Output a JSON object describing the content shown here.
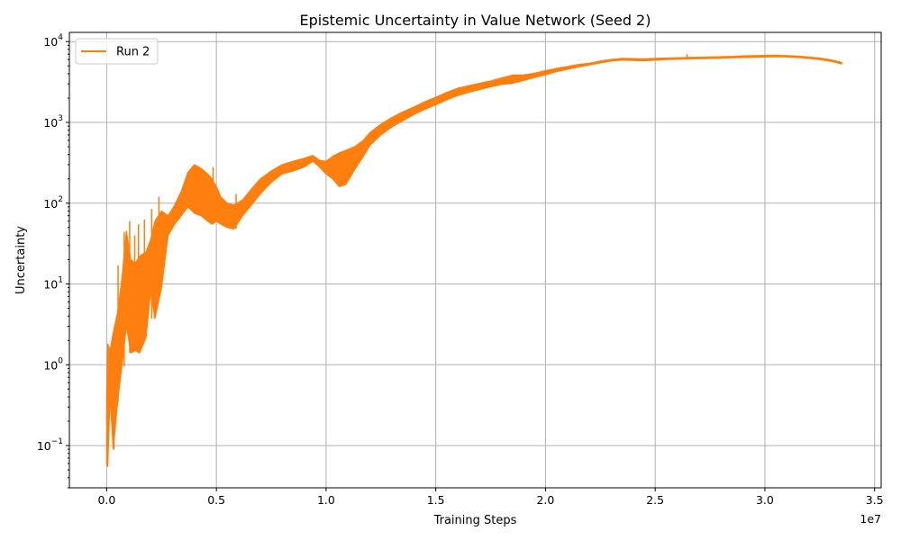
{
  "chart_data": {
    "type": "line",
    "title": "Epistemic Uncertainty in Value Network (Seed 2)",
    "xlabel": "Training Steps",
    "ylabel": "Uncertainty",
    "x_offset_label": "1e7",
    "xlim": [
      -1700000,
      35300000
    ],
    "ylim": [
      0.03,
      13000
    ],
    "yscale": "log",
    "grid": true,
    "legend_position": "upper left",
    "x_ticks": [
      {
        "value": 0,
        "label": "0.0"
      },
      {
        "value": 5000000,
        "label": "0.5"
      },
      {
        "value": 10000000,
        "label": "1.0"
      },
      {
        "value": 15000000,
        "label": "1.5"
      },
      {
        "value": 20000000,
        "label": "2.0"
      },
      {
        "value": 25000000,
        "label": "2.5"
      },
      {
        "value": 30000000,
        "label": "3.0"
      },
      {
        "value": 35000000,
        "label": "3.5"
      }
    ],
    "y_ticks": [
      {
        "value": 0.1,
        "base": "10",
        "exp": "−1"
      },
      {
        "value": 1,
        "base": "10",
        "exp": "0"
      },
      {
        "value": 10,
        "base": "10",
        "exp": "1"
      },
      {
        "value": 100,
        "base": "10",
        "exp": "2"
      },
      {
        "value": 1000,
        "base": "10",
        "exp": "3"
      },
      {
        "value": 10000,
        "base": "10",
        "exp": "4"
      }
    ],
    "series": [
      {
        "name": "Run 2",
        "color": "#ff7f0e",
        "upper": [
          [
            0,
            0.4
          ],
          [
            50000,
            1.8
          ],
          [
            150000,
            1.5
          ],
          [
            300000,
            2.5
          ],
          [
            500000,
            4.5
          ],
          [
            700000,
            12
          ],
          [
            900000,
            45
          ],
          [
            1100000,
            20
          ],
          [
            1300000,
            18
          ],
          [
            1500000,
            22
          ],
          [
            1800000,
            25
          ],
          [
            2000000,
            35
          ],
          [
            2200000,
            60
          ],
          [
            2500000,
            80
          ],
          [
            2800000,
            70
          ],
          [
            3100000,
            95
          ],
          [
            3400000,
            140
          ],
          [
            3700000,
            240
          ],
          [
            4000000,
            300
          ],
          [
            4300000,
            270
          ],
          [
            4600000,
            230
          ],
          [
            4800000,
            200
          ],
          [
            5000000,
            160
          ],
          [
            5200000,
            120
          ],
          [
            5500000,
            100
          ],
          [
            5800000,
            95
          ],
          [
            6200000,
            110
          ],
          [
            6600000,
            150
          ],
          [
            7000000,
            200
          ],
          [
            7500000,
            250
          ],
          [
            8000000,
            300
          ],
          [
            8500000,
            330
          ],
          [
            9000000,
            360
          ],
          [
            9400000,
            390
          ],
          [
            9700000,
            340
          ],
          [
            10000000,
            330
          ],
          [
            10300000,
            380
          ],
          [
            10600000,
            420
          ],
          [
            10900000,
            450
          ],
          [
            11300000,
            500
          ],
          [
            11700000,
            600
          ],
          [
            12000000,
            750
          ],
          [
            12500000,
            950
          ],
          [
            13000000,
            1150
          ],
          [
            13500000,
            1350
          ],
          [
            14000000,
            1550
          ],
          [
            14500000,
            1800
          ],
          [
            15000000,
            2050
          ],
          [
            15500000,
            2350
          ],
          [
            16000000,
            2650
          ],
          [
            16500000,
            2850
          ],
          [
            17000000,
            3050
          ],
          [
            17500000,
            3250
          ],
          [
            18000000,
            3550
          ],
          [
            18500000,
            3850
          ],
          [
            19000000,
            3850
          ],
          [
            19500000,
            4050
          ],
          [
            20000000,
            4350
          ],
          [
            20500000,
            4650
          ],
          [
            21000000,
            4900
          ],
          [
            21500000,
            5200
          ],
          [
            22000000,
            5400
          ],
          [
            22500000,
            5750
          ],
          [
            23000000,
            6000
          ],
          [
            23500000,
            6200
          ],
          [
            24000000,
            6150
          ],
          [
            24500000,
            6100
          ],
          [
            25000000,
            6200
          ],
          [
            25500000,
            6250
          ],
          [
            26000000,
            6300
          ],
          [
            26500000,
            6350
          ],
          [
            27000000,
            6400
          ],
          [
            27500000,
            6450
          ],
          [
            28000000,
            6500
          ],
          [
            28500000,
            6550
          ],
          [
            29000000,
            6650
          ],
          [
            29500000,
            6700
          ],
          [
            30000000,
            6750
          ],
          [
            30500000,
            6800
          ],
          [
            31000000,
            6700
          ],
          [
            31500000,
            6600
          ],
          [
            32000000,
            6450
          ],
          [
            32500000,
            6250
          ],
          [
            33000000,
            5950
          ],
          [
            33500000,
            5500
          ]
        ],
        "lower": [
          [
            0,
            0.06
          ],
          [
            50000,
            0.055
          ],
          [
            150000,
            0.4
          ],
          [
            300000,
            0.09
          ],
          [
            500000,
            0.35
          ],
          [
            700000,
            1.0
          ],
          [
            900000,
            3.0
          ],
          [
            1100000,
            1.4
          ],
          [
            1300000,
            1.5
          ],
          [
            1500000,
            1.4
          ],
          [
            1800000,
            2.2
          ],
          [
            2000000,
            8
          ],
          [
            2200000,
            3.7
          ],
          [
            2500000,
            9
          ],
          [
            2800000,
            40
          ],
          [
            3100000,
            55
          ],
          [
            3400000,
            70
          ],
          [
            3700000,
            90
          ],
          [
            4000000,
            75
          ],
          [
            4300000,
            70
          ],
          [
            4600000,
            60
          ],
          [
            4800000,
            55
          ],
          [
            5000000,
            60
          ],
          [
            5200000,
            55
          ],
          [
            5500000,
            50
          ],
          [
            5800000,
            48
          ],
          [
            6200000,
            70
          ],
          [
            6600000,
            95
          ],
          [
            7000000,
            130
          ],
          [
            7500000,
            180
          ],
          [
            8000000,
            230
          ],
          [
            8500000,
            250
          ],
          [
            9000000,
            280
          ],
          [
            9400000,
            330
          ],
          [
            9700000,
            280
          ],
          [
            10000000,
            230
          ],
          [
            10300000,
            200
          ],
          [
            10600000,
            160
          ],
          [
            10900000,
            170
          ],
          [
            11300000,
            260
          ],
          [
            11700000,
            380
          ],
          [
            12000000,
            520
          ],
          [
            12500000,
            700
          ],
          [
            13000000,
            880
          ],
          [
            13500000,
            1050
          ],
          [
            14000000,
            1250
          ],
          [
            14500000,
            1450
          ],
          [
            15000000,
            1650
          ],
          [
            15500000,
            1900
          ],
          [
            16000000,
            2150
          ],
          [
            16500000,
            2350
          ],
          [
            17000000,
            2550
          ],
          [
            17500000,
            2750
          ],
          [
            18000000,
            2950
          ],
          [
            18500000,
            3050
          ],
          [
            19000000,
            3300
          ],
          [
            19500000,
            3600
          ],
          [
            20000000,
            3900
          ],
          [
            20500000,
            4250
          ],
          [
            21000000,
            4550
          ],
          [
            21500000,
            4850
          ],
          [
            22000000,
            5150
          ],
          [
            22500000,
            5450
          ],
          [
            23000000,
            5750
          ],
          [
            23500000,
            5900
          ],
          [
            24000000,
            5850
          ],
          [
            24500000,
            5800
          ],
          [
            25000000,
            5900
          ],
          [
            25500000,
            6000
          ],
          [
            26000000,
            6050
          ],
          [
            26500000,
            6100
          ],
          [
            27000000,
            6150
          ],
          [
            27500000,
            6200
          ],
          [
            28000000,
            6250
          ],
          [
            28500000,
            6300
          ],
          [
            29000000,
            6350
          ],
          [
            29500000,
            6400
          ],
          [
            30000000,
            6450
          ],
          [
            30500000,
            6500
          ],
          [
            31000000,
            6450
          ],
          [
            31500000,
            6350
          ],
          [
            32000000,
            6200
          ],
          [
            32500000,
            6000
          ],
          [
            33000000,
            5700
          ],
          [
            33500000,
            5300
          ]
        ],
        "spikes": [
          [
            60000,
            0.1,
            1.8
          ],
          [
            200000,
            0.5,
            1.5
          ],
          [
            330000,
            0.09,
            2.0
          ],
          [
            520000,
            0.35,
            17
          ],
          [
            800000,
            0.95,
            44
          ],
          [
            1050000,
            1.4,
            60
          ],
          [
            1280000,
            1.5,
            40
          ],
          [
            1450000,
            1.4,
            55
          ],
          [
            1720000,
            2.2,
            63
          ],
          [
            2050000,
            3.7,
            85
          ],
          [
            2380000,
            9,
            120
          ],
          [
            4850000,
            55,
            280
          ],
          [
            5900000,
            48,
            130
          ],
          [
            26450000,
            6000,
            7000
          ]
        ]
      }
    ]
  }
}
